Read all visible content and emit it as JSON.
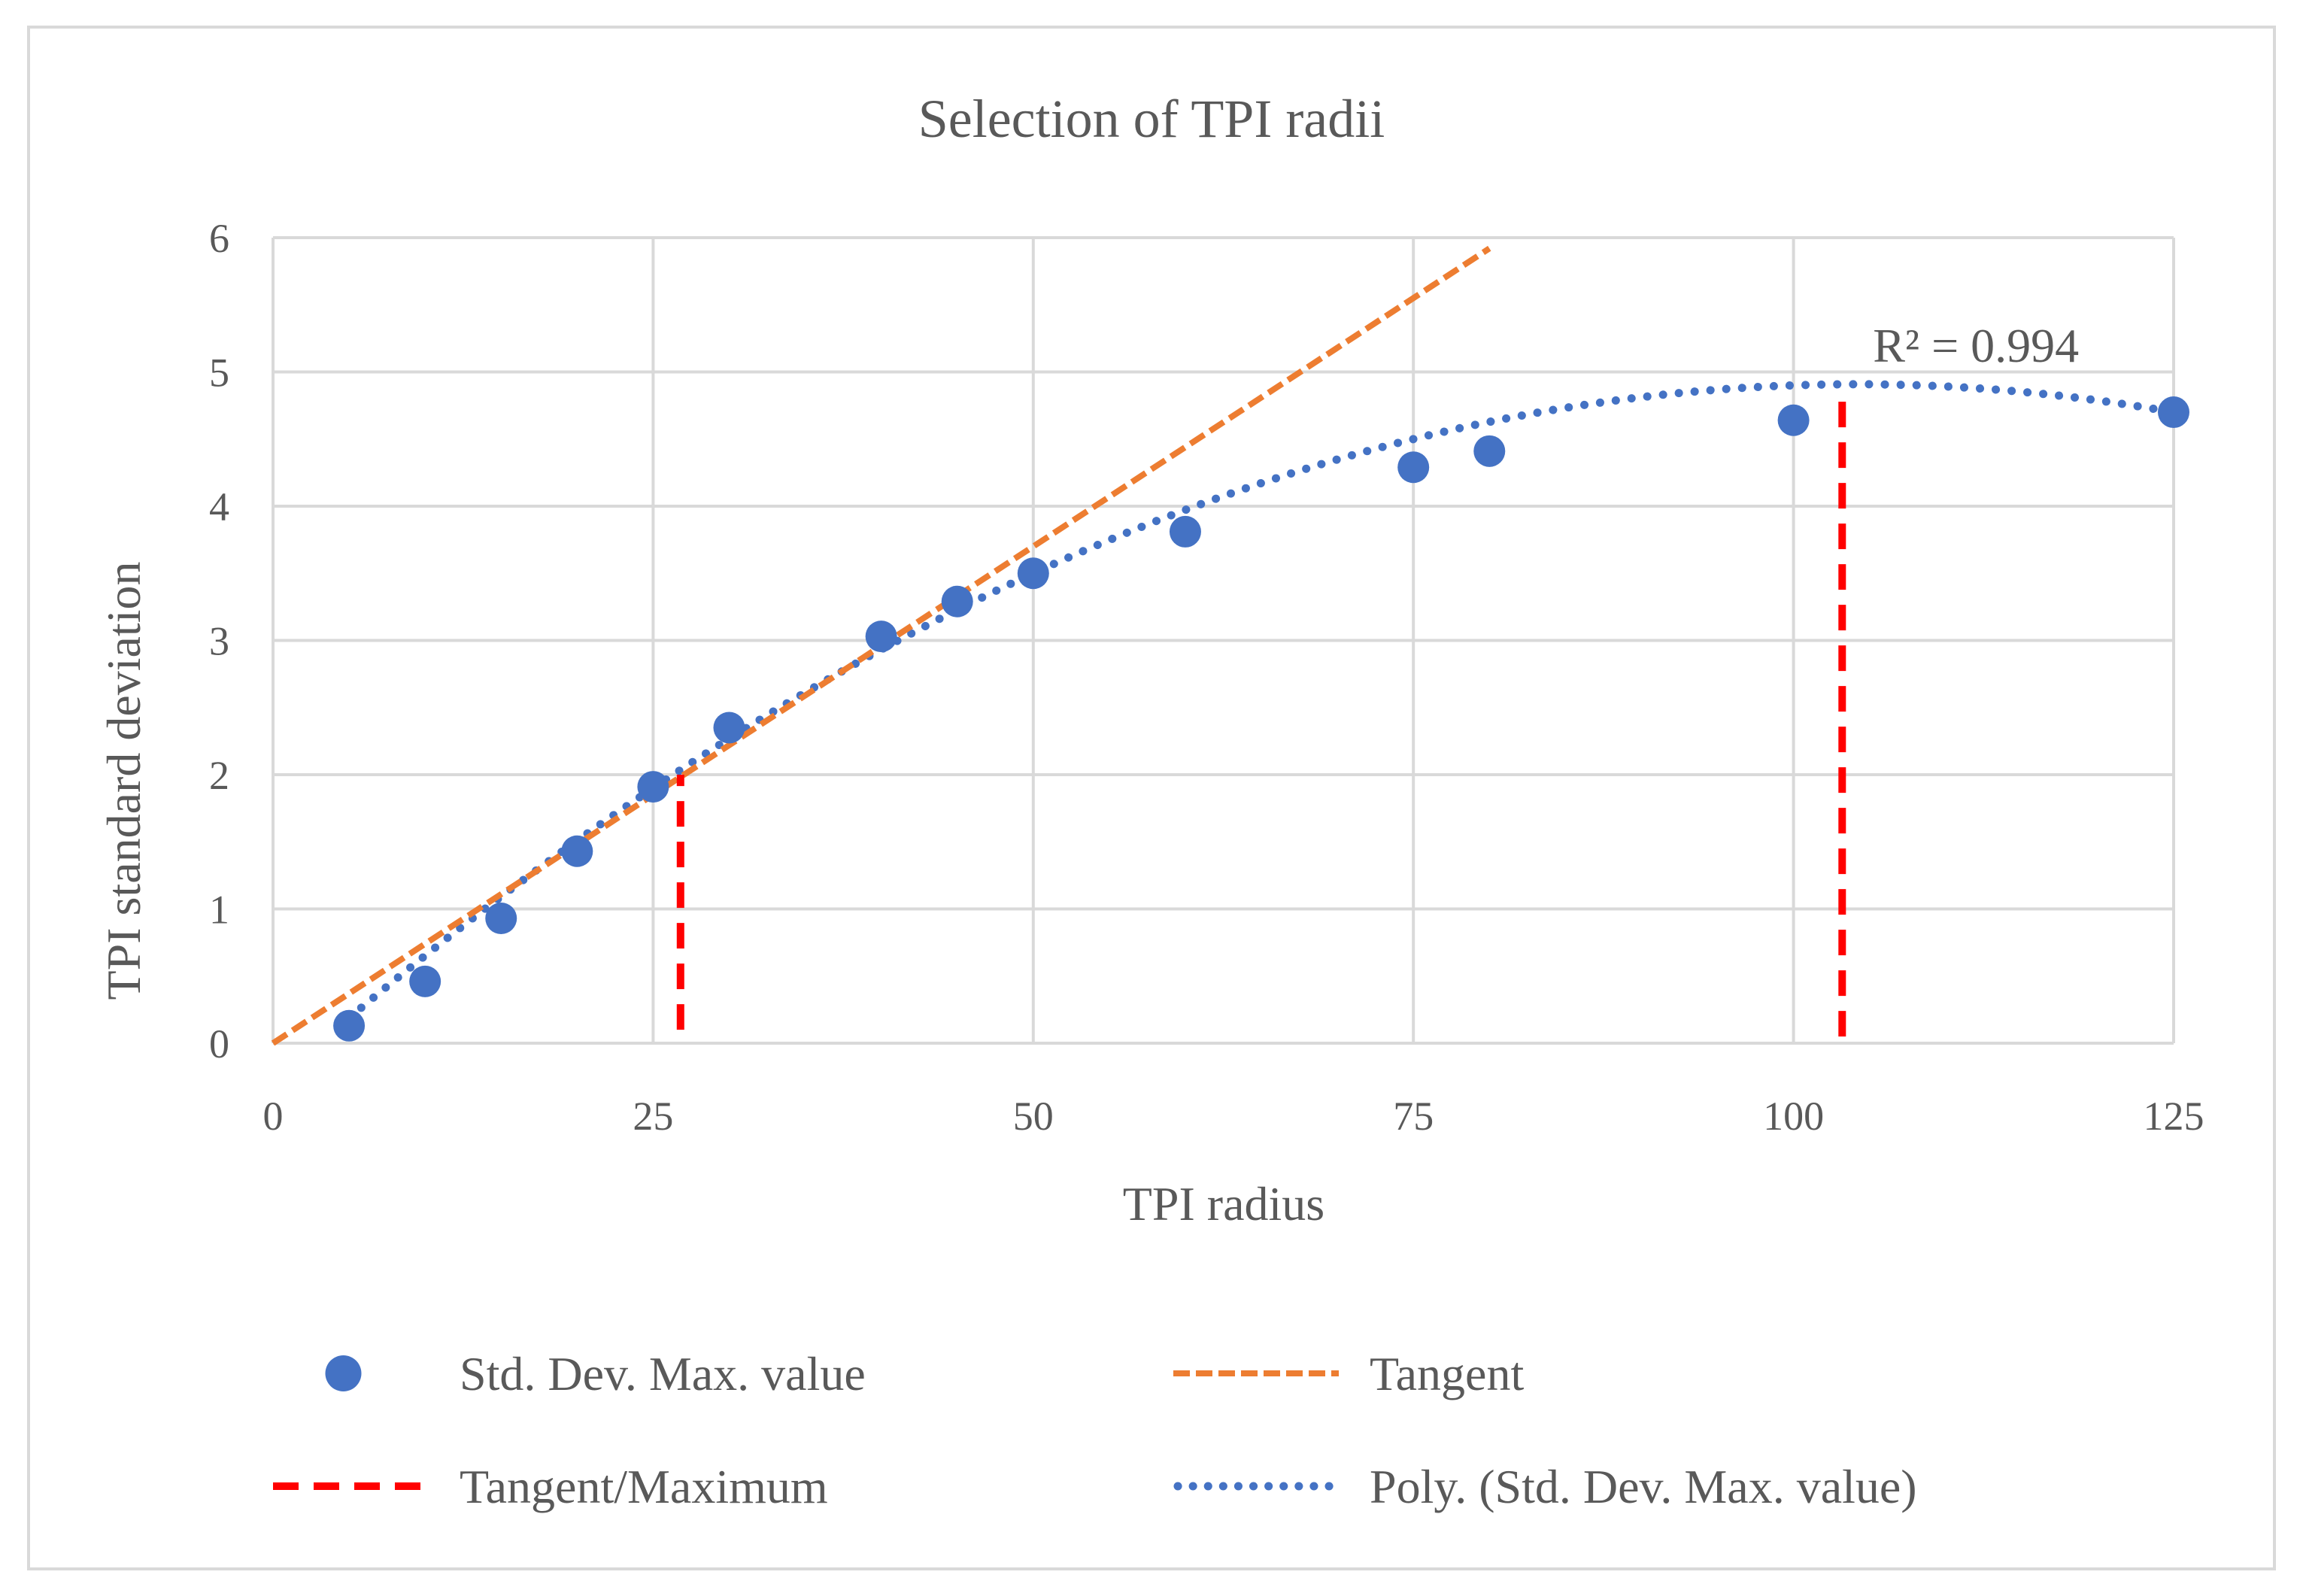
{
  "chart_data": {
    "type": "scatter",
    "title": "Selection of TPI radii",
    "xlabel": "TPI radius",
    "ylabel": "TPI standard deviation",
    "xlim": [
      0,
      125
    ],
    "ylim": [
      0,
      6
    ],
    "x_ticks": [
      0,
      25,
      50,
      75,
      100,
      125
    ],
    "y_ticks": [
      0,
      1,
      2,
      3,
      4,
      5,
      6
    ],
    "grid": true,
    "series": [
      {
        "name": "Std. Dev. Max. value",
        "kind": "scatter",
        "color": "#4472C4",
        "x": [
          5,
          10,
          15,
          20,
          25,
          30,
          40,
          45,
          50,
          60,
          75,
          80,
          100,
          125
        ],
        "y": [
          0.13,
          0.46,
          0.93,
          1.43,
          1.91,
          2.35,
          3.03,
          3.29,
          3.5,
          3.81,
          4.29,
          4.41,
          4.64,
          4.7
        ]
      },
      {
        "name": "Tangent",
        "kind": "line",
        "style": "dashed",
        "color": "#ED7D31",
        "x": [
          0,
          80
        ],
        "y": [
          0,
          5.92
        ]
      },
      {
        "name": "Tangent/Maximum",
        "kind": "vertical-lines",
        "style": "dashed",
        "color": "#FF0000",
        "lines": [
          {
            "x": 26.8,
            "y_from": 0.1,
            "y_to": 2.0
          },
          {
            "x": 103.2,
            "y_from": 0.05,
            "y_to": 4.78
          }
        ]
      },
      {
        "name": "Poly. (Std. Dev. Max. value)",
        "kind": "polynomial-trendline",
        "style": "dotted",
        "color": "#4472C4",
        "degree": 2,
        "coefficients": [
          -0.3,
          0.1,
          -0.00048
        ],
        "x_range": [
          5,
          125
        ]
      }
    ],
    "annotations": [
      {
        "text": "R² = 0.994",
        "x": 112,
        "y": 5.2
      }
    ],
    "legend": {
      "placement": "bottom",
      "entries": [
        {
          "label": "Std. Dev. Max. value",
          "series": 0
        },
        {
          "label": "Tangent",
          "series": 1
        },
        {
          "label": "Tangent/Maximum",
          "series": 2
        },
        {
          "label": "Poly. (Std. Dev. Max. value)",
          "series": 3
        }
      ]
    }
  }
}
